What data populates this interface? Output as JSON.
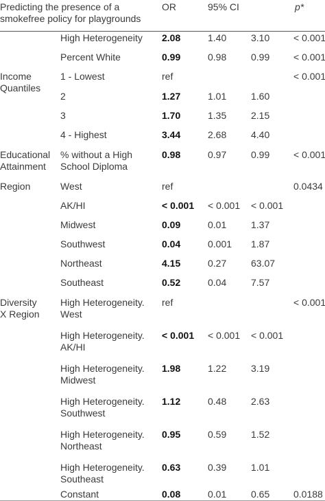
{
  "header": {
    "title_line1": "Predicting the presence of a",
    "title_line2": "smokefree policy for playgrounds",
    "or": "OR",
    "ci": "95% CI",
    "p": "p*"
  },
  "rows": [
    {
      "cat": "",
      "cat2": "",
      "var": "High Heterogeneity",
      "var2": "",
      "or": "2.08",
      "bold": true,
      "lo": "1.40",
      "hi": "3.10",
      "p": "< 0.001"
    },
    {
      "cat": "",
      "cat2": "",
      "var": "Percent White",
      "var2": "",
      "or": "0.99",
      "bold": true,
      "lo": "0.98",
      "hi": "0.99",
      "p": "< 0.001"
    },
    {
      "cat": "Income",
      "cat2": "Quantiles",
      "var": "1 - Lowest",
      "var2": "",
      "or": "ref",
      "bold": false,
      "lo": "",
      "hi": "",
      "p": "< 0.001"
    },
    {
      "cat": "",
      "cat2": "",
      "var": "2",
      "var2": "",
      "or": "1.27",
      "bold": true,
      "lo": "1.01",
      "hi": "1.60",
      "p": ""
    },
    {
      "cat": "",
      "cat2": "",
      "var": "3",
      "var2": "",
      "or": "1.70",
      "bold": true,
      "lo": "1.35",
      "hi": "2.15",
      "p": ""
    },
    {
      "cat": "",
      "cat2": "",
      "var": "4 - Highest",
      "var2": "",
      "or": "3.44",
      "bold": true,
      "lo": "2.68",
      "hi": "4.40",
      "p": ""
    },
    {
      "cat": "Educational",
      "cat2": "Attainment",
      "var": "% without a High",
      "var2": "School Diploma",
      "or": "0.98",
      "bold": true,
      "lo": "0.97",
      "hi": "0.99",
      "p": "< 0.001"
    },
    {
      "cat": "Region",
      "cat2": "",
      "var": "West",
      "var2": "",
      "or": "ref",
      "bold": false,
      "lo": "",
      "hi": "",
      "p": "0.0434"
    },
    {
      "cat": "",
      "cat2": "",
      "var": "AK/HI",
      "var2": "",
      "or": "< 0.001",
      "bold": true,
      "lo": "< 0.001",
      "hi": "< 0.001",
      "p": ""
    },
    {
      "cat": "",
      "cat2": "",
      "var": "Midwest",
      "var2": "",
      "or": "0.09",
      "bold": true,
      "lo": "0.01",
      "hi": "1.37",
      "p": ""
    },
    {
      "cat": "",
      "cat2": "",
      "var": "Southwest",
      "var2": "",
      "or": "0.04",
      "bold": true,
      "lo": "0.001",
      "hi": "1.87",
      "p": ""
    },
    {
      "cat": "",
      "cat2": "",
      "var": "Northeast",
      "var2": "",
      "or": "4.15",
      "bold": true,
      "lo": "0.27",
      "hi": "63.07",
      "p": ""
    },
    {
      "cat": "",
      "cat2": "",
      "var": "Southeast",
      "var2": "",
      "or": "0.52",
      "bold": true,
      "lo": "0.04",
      "hi": "7.57",
      "p": ""
    },
    {
      "cat": "Diversity",
      "cat2": "X Region",
      "var": "High Heterogeneity.",
      "var2": "West",
      "or": "ref",
      "bold": false,
      "lo": "",
      "hi": "",
      "p": "< 0.001"
    },
    {
      "cat": "",
      "cat2": "",
      "var": "High Heterogeneity.",
      "var2": "AK/HI",
      "or": "< 0.001",
      "bold": true,
      "lo": "< 0.001",
      "hi": "< 0.001",
      "p": ""
    },
    {
      "cat": "",
      "cat2": "",
      "var": "High Heterogeneity.",
      "var2": "Midwest",
      "or": "1.98",
      "bold": true,
      "lo": "1.22",
      "hi": "3.19",
      "p": ""
    },
    {
      "cat": "",
      "cat2": "",
      "var": "High Heterogeneity.",
      "var2": "Southwest",
      "or": "1.12",
      "bold": true,
      "lo": "0.48",
      "hi": "2.63",
      "p": ""
    },
    {
      "cat": "",
      "cat2": "",
      "var": "High Heterogeneity.",
      "var2": "Northeast",
      "or": "0.95",
      "bold": true,
      "lo": "0.59",
      "hi": "1.52",
      "p": ""
    },
    {
      "cat": "",
      "cat2": "",
      "var": "High Heterogeneity.",
      "var2": "Southeast",
      "or": "0.63",
      "bold": true,
      "lo": "0.39",
      "hi": "1.01",
      "p": ""
    },
    {
      "cat": "",
      "cat2": "",
      "var": "Constant",
      "var2": "",
      "or": "0.08",
      "bold": true,
      "lo": "0.01",
      "hi": "0.65",
      "p": "0.0188"
    }
  ]
}
